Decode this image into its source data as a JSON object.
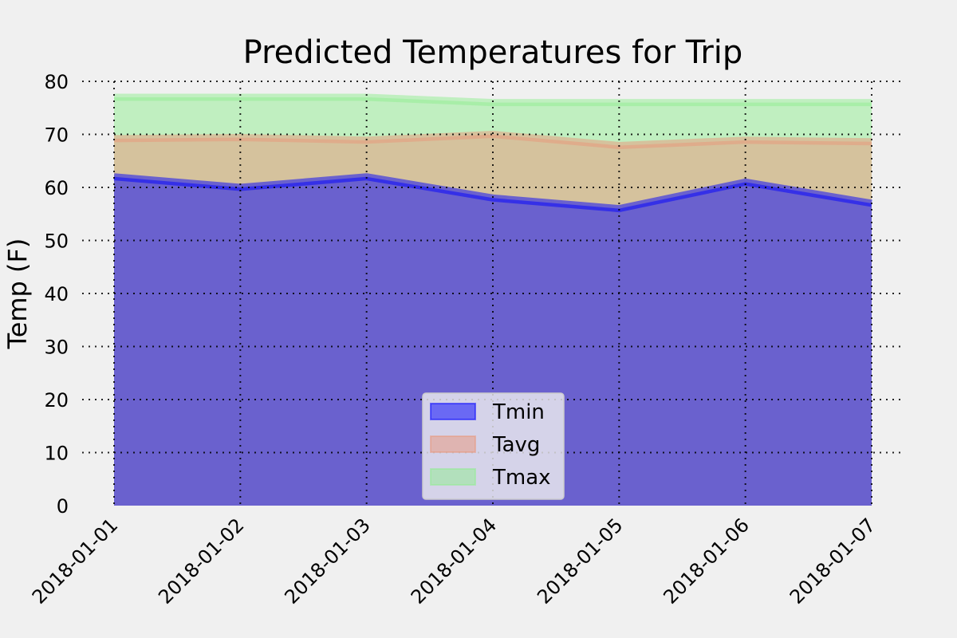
{
  "chart_data": {
    "type": "area",
    "title": "Predicted Temperatures for Trip",
    "xlabel": "",
    "ylabel": "Temp (F)",
    "ylim": [
      0,
      80
    ],
    "yticks": [
      0,
      10,
      20,
      30,
      40,
      50,
      60,
      70,
      80
    ],
    "x": [
      "2018-01-01",
      "2018-01-02",
      "2018-01-03",
      "2018-01-04",
      "2018-01-05",
      "2018-01-06",
      "2018-01-07"
    ],
    "grid": true,
    "legend_position": "bottom-center",
    "series": [
      {
        "name": "Tmin",
        "values": [
          62.0,
          60.0,
          62.0,
          58.0,
          56.0,
          61.0,
          57.0
        ],
        "color": "#0000ff"
      },
      {
        "name": "Tavg",
        "values": [
          69.2,
          69.4,
          68.9,
          70.0,
          67.9,
          68.9,
          68.6
        ],
        "color": "#e9967a"
      },
      {
        "name": "Tmax",
        "values": [
          77.0,
          77.0,
          77.0,
          76.0,
          76.0,
          76.0,
          76.0
        ],
        "color": "#90ee90"
      }
    ]
  }
}
